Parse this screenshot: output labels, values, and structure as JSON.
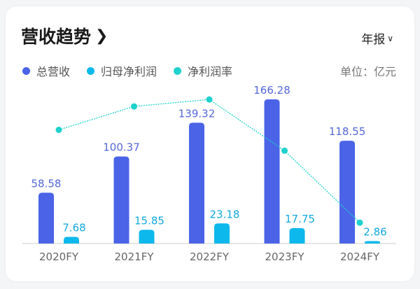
{
  "header": {
    "title": "营收趋势",
    "title_icon": "chevron-right-icon",
    "period": "年报",
    "period_icon": "chevron-down-icon"
  },
  "unit_label": "单位：亿元",
  "colors": {
    "revenue": "#4a63e7",
    "net_profit": "#0db8ec",
    "margin": "#1fd1cc"
  },
  "chart_data": {
    "type": "bar",
    "categories": [
      "2020FY",
      "2021FY",
      "2022FY",
      "2023FY",
      "2024FY"
    ],
    "series": [
      {
        "name": "总营收",
        "type": "bar",
        "values": [
          58.58,
          100.37,
          139.32,
          166.28,
          118.55
        ]
      },
      {
        "name": "归母净利润",
        "type": "bar",
        "values": [
          7.68,
          15.85,
          23.18,
          17.75,
          2.86
        ]
      },
      {
        "name": "净利润率",
        "type": "line",
        "values": [
          13.1,
          15.8,
          16.6,
          10.7,
          2.4
        ],
        "unit": "%",
        "labels_shown": false
      }
    ],
    "legend": "top-left",
    "grid": false,
    "ylim": [
      0,
      170
    ]
  }
}
